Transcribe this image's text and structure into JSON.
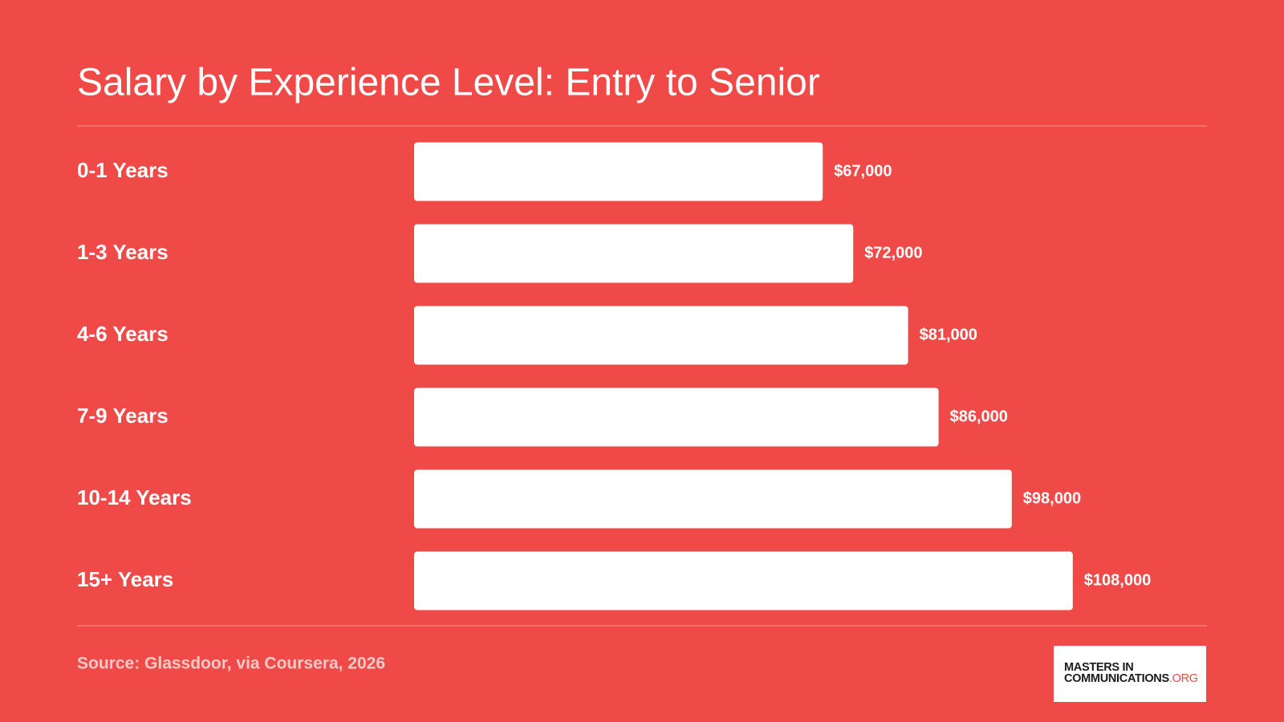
{
  "chart_data": {
    "type": "bar",
    "orientation": "horizontal",
    "title": "Salary by Experience Level: Entry to Senior",
    "categories": [
      "0-1 Years",
      "1-3 Years",
      "4-6 Years",
      "7-9 Years",
      "10-14 Years",
      "15+ Years"
    ],
    "values": [
      67000,
      72000,
      81000,
      86000,
      98000,
      108000
    ],
    "value_labels": [
      "$67,000",
      "$72,000",
      "$81,000",
      "$86,000",
      "$98,000",
      "$108,000"
    ],
    "color": "#ffffff",
    "xlim": [
      0,
      130000
    ],
    "source": "Source: Glassdoor, via Coursera, 2026",
    "logo": {
      "line1": "MASTERS IN",
      "line2": "COMMUNICATIONS",
      "suffix": ".ORG"
    }
  }
}
